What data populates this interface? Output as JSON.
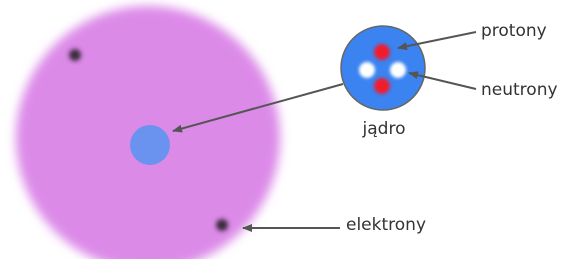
{
  "labels": {
    "protons": "protony",
    "neutrons": "neutrony",
    "nucleus": "jądro",
    "electrons": "elektrony"
  }
}
